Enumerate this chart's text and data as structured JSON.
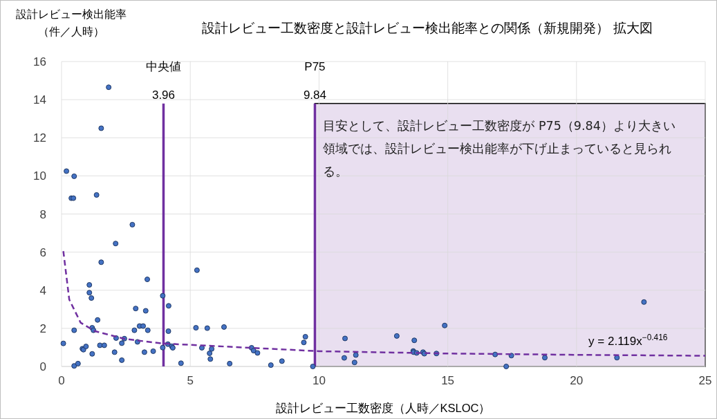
{
  "chart_data": {
    "type": "scatter",
    "title": "設計レビュー工数密度と設計レビュー検出能率との関係（新規開発） 拡大図",
    "xlabel": "設計レビュー工数密度（人時／KSLOC）",
    "ylabel": "設計レビュー検出能率（件／人時）",
    "xlim": [
      0,
      25
    ],
    "xticks": [
      0,
      5,
      10,
      15,
      20,
      25
    ],
    "ylim": [
      0,
      16
    ],
    "yticks": [
      0,
      2,
      4,
      6,
      8,
      10,
      12,
      14,
      16
    ],
    "grid": true,
    "series": [
      {
        "type": "scatter",
        "marker": "circle",
        "color": "#4472c4",
        "x": [
          1.83,
          1.54,
          0.19,
          0.49,
          0.38,
          0.46,
          1.36,
          2.75,
          2.1,
          1.54,
          3.33,
          1.08,
          1.08,
          1.16,
          3.93,
          4.16,
          2.88,
          3.27,
          1.4,
          3.03,
          3.17,
          0.49,
          1.19,
          1.24,
          2.83,
          3.35,
          4.15,
          0.07,
          0.81,
          0.85,
          0.95,
          1.49,
          1.66,
          2.12,
          2.44,
          2.34,
          2.95,
          4.13,
          4.28,
          4.32,
          3.93,
          1.19,
          2.06,
          3.22,
          3.56,
          2.34,
          0.49,
          0.64,
          4.64,
          5.26,
          5.22,
          5.66,
          6.31,
          5.45,
          5.83,
          5.75,
          5.78,
          6.53,
          7.38,
          7.46,
          7.61,
          8.13,
          8.56,
          9.41,
          9.47,
          9.76,
          11.01,
          10.98,
          11.43,
          11.38,
          13.02,
          13.7,
          13.66,
          13.67,
          13.79,
          14.04,
          14.09,
          14.56,
          14.88,
          16.84,
          17.47,
          17.27,
          18.77,
          21.57,
          22.62
        ],
        "values": [
          14.65,
          12.5,
          10.25,
          9.98,
          8.83,
          8.83,
          9.0,
          7.44,
          6.45,
          5.47,
          4.57,
          4.28,
          3.87,
          3.59,
          3.71,
          3.18,
          3.04,
          2.92,
          2.44,
          2.12,
          2.12,
          1.9,
          2.03,
          1.9,
          1.9,
          1.9,
          1.85,
          1.21,
          0.93,
          0.88,
          1.05,
          1.11,
          1.11,
          1.49,
          1.46,
          1.22,
          1.29,
          1.17,
          1.06,
          0.98,
          0.99,
          0.66,
          0.75,
          0.75,
          0.8,
          0.33,
          0.03,
          0.15,
          0.17,
          5.05,
          2.03,
          2.01,
          2.07,
          0.98,
          0.92,
          0.69,
          0.39,
          0.15,
          0.98,
          0.83,
          0.71,
          0.07,
          0.28,
          1.26,
          1.56,
          0.0,
          1.47,
          0.45,
          0.6,
          0.21,
          1.6,
          1.37,
          0.81,
          0.75,
          0.71,
          0.75,
          0.67,
          0.68,
          2.15,
          0.63,
          0.57,
          0.0,
          0.46,
          0.46,
          3.38
        ]
      },
      {
        "type": "line",
        "line_style": "dashed",
        "color": "#7030a0",
        "x": [
          0.07,
          0.3,
          0.74,
          1.28,
          2.44,
          3.87,
          10,
          15,
          20,
          25
        ],
        "values": [
          6.05,
          3.51,
          2.3,
          1.86,
          1.45,
          1.21,
          0.8,
          0.68,
          0.61,
          0.56
        ]
      }
    ],
    "ref_lines": [
      {
        "axis": "x",
        "value": 3.96,
        "label": "中央値\n3.96",
        "color": "#7030a0"
      },
      {
        "axis": "x",
        "value": 9.84,
        "label": "P75\n9.84",
        "color": "#7030a0"
      }
    ],
    "bands": [
      {
        "axis": "x",
        "from": 9.84,
        "to": 25,
        "color": "#e9dff0"
      }
    ],
    "annotations": [
      "目安として、設計レビュー工数密度が P75（9.84）より大きい領域では、設計レビュー検出能率が下げ止まっていると見られる。",
      {
        "text": "y = 2.119x$^{−0.416}$",
        "x": 22,
        "y": 0.56
      }
    ]
  }
}
